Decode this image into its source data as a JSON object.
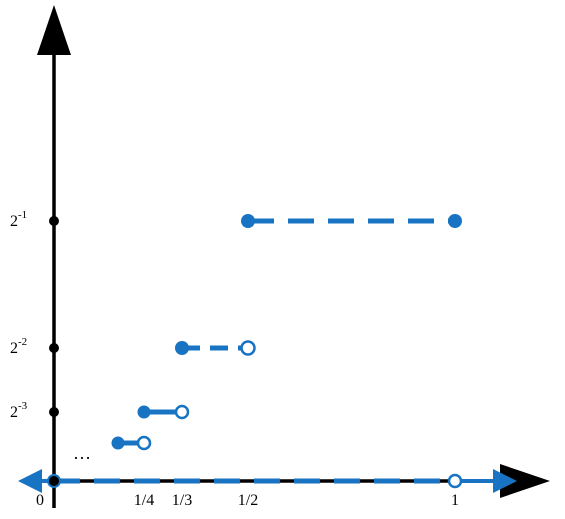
{
  "chart_data": {
    "type": "line",
    "title": "",
    "xlabel": "",
    "ylabel": "",
    "x_tick_labels": [
      {
        "value": 0,
        "label": "0"
      },
      {
        "value": 0.25,
        "label": "1/4"
      },
      {
        "value": 0.3333,
        "label": "1/3"
      },
      {
        "value": 0.5,
        "label": "1/2"
      },
      {
        "value": 1,
        "label": "1"
      }
    ],
    "y_tick_labels": [
      {
        "value": 0.5,
        "base": "2",
        "exp": "-1"
      },
      {
        "value": 0.25,
        "base": "2",
        "exp": "-2"
      },
      {
        "value": 0.125,
        "base": "2",
        "exp": "-3"
      }
    ],
    "ellipsis": "…",
    "step_segments": [
      {
        "x_start": 0.5,
        "x_end": 1.0,
        "y": 0.5,
        "start_closed": true,
        "end_closed": true
      },
      {
        "x_start": 0.3333,
        "x_end": 0.5,
        "y": 0.25,
        "start_closed": true,
        "end_closed": false
      },
      {
        "x_start": 0.25,
        "x_end": 0.3333,
        "y": 0.125,
        "start_closed": true,
        "end_closed": false
      },
      {
        "x_start": 0.2,
        "x_end": 0.25,
        "y": 0.0625,
        "start_closed": true,
        "end_closed": false
      }
    ],
    "baseline": {
      "y": 0,
      "x_start": 0,
      "x_end": 1,
      "start_closed": true,
      "end_closed": false
    },
    "colors": {
      "series": "#1874c2",
      "axes": "#000000"
    }
  }
}
